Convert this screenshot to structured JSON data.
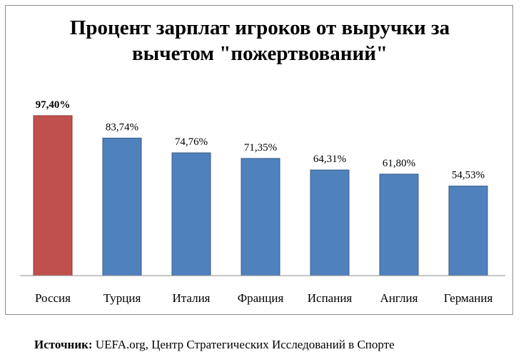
{
  "chart_data": {
    "type": "bar",
    "title": [
      "Процент зарплат игроков от выручки за",
      "вычетом \"пожертвований\""
    ],
    "categories": [
      "Россия",
      "Турция",
      "Италия",
      "Франция",
      "Испания",
      "Англия",
      "Германия"
    ],
    "values": [
      97.4,
      83.74,
      74.76,
      71.35,
      64.31,
      61.8,
      54.53
    ],
    "value_labels": [
      "97,40%",
      "83,74%",
      "74,76%",
      "71,35%",
      "64,31%",
      "61,80%",
      "54,53%"
    ],
    "highlight_index": 0,
    "colors": {
      "default": "#4f81bd",
      "default_stroke": "#385d8a",
      "highlight": "#c0504d",
      "highlight_stroke": "#8c3836"
    },
    "ylim": [
      0,
      100
    ],
    "grid": false,
    "legend": "none",
    "xlabel": "",
    "ylabel": ""
  },
  "source": {
    "label": "Источник:",
    "text": "UEFA.org, Центр Стратегических Исследований в Спорте"
  }
}
